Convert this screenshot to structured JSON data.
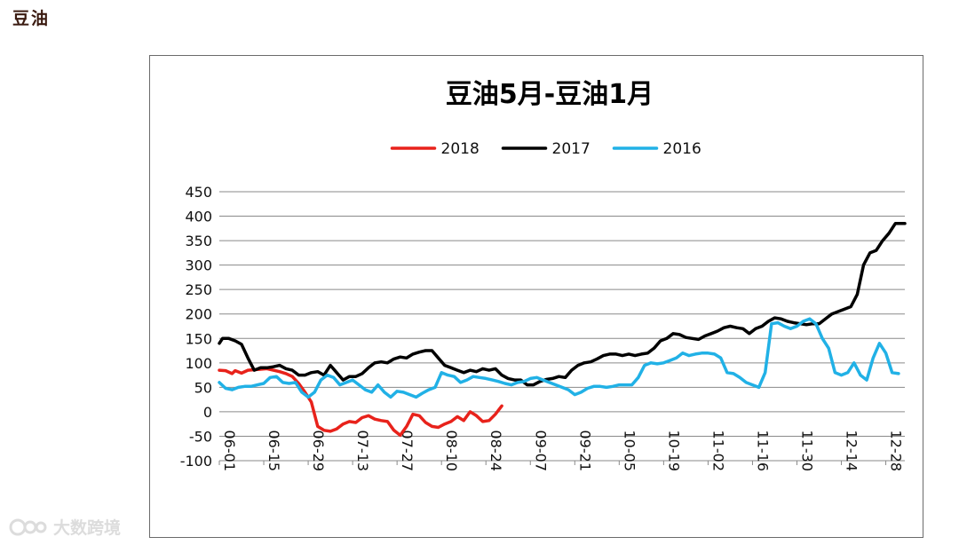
{
  "page": {
    "heading": "豆油",
    "watermark": "大数跨境"
  },
  "chart_data": {
    "type": "line",
    "title": "豆油5月-豆油1月",
    "xlabel": "",
    "ylabel": "",
    "ylim": [
      -100,
      450
    ],
    "yticks": [
      -100,
      -50,
      0,
      50,
      100,
      150,
      200,
      250,
      300,
      350,
      400,
      450
    ],
    "xrange": [
      "06-01",
      "01-03"
    ],
    "xticks": [
      "06-01",
      "06-15",
      "06-29",
      "07-13",
      "07-27",
      "08-10",
      "08-24",
      "09-07",
      "09-21",
      "10-05",
      "10-19",
      "11-02",
      "11-16",
      "11-30",
      "12-14",
      "12-28"
    ],
    "grid": true,
    "legend_position": "top-center",
    "series": [
      {
        "name": "2018",
        "color": "#e8221b",
        "points": [
          [
            "06-01",
            85
          ],
          [
            "06-03",
            84
          ],
          [
            "06-05",
            78
          ],
          [
            "06-06",
            84
          ],
          [
            "06-08",
            79
          ],
          [
            "06-10",
            85
          ],
          [
            "06-12",
            86
          ],
          [
            "06-14",
            87
          ],
          [
            "06-16",
            88
          ],
          [
            "06-18",
            85
          ],
          [
            "06-20",
            82
          ],
          [
            "06-22",
            78
          ],
          [
            "06-24",
            72
          ],
          [
            "06-26",
            58
          ],
          [
            "06-28",
            40
          ],
          [
            "06-30",
            20
          ],
          [
            "07-02",
            -30
          ],
          [
            "07-04",
            -38
          ],
          [
            "07-06",
            -40
          ],
          [
            "07-08",
            -35
          ],
          [
            "07-10",
            -25
          ],
          [
            "07-12",
            -20
          ],
          [
            "07-14",
            -22
          ],
          [
            "07-16",
            -12
          ],
          [
            "07-18",
            -8
          ],
          [
            "07-20",
            -15
          ],
          [
            "07-22",
            -18
          ],
          [
            "07-24",
            -20
          ],
          [
            "07-26",
            -38
          ],
          [
            "07-28",
            -48
          ],
          [
            "07-30",
            -30
          ],
          [
            "08-01",
            -5
          ],
          [
            "08-03",
            -8
          ],
          [
            "08-05",
            -22
          ],
          [
            "08-07",
            -30
          ],
          [
            "08-09",
            -32
          ],
          [
            "08-11",
            -25
          ],
          [
            "08-13",
            -20
          ],
          [
            "08-15",
            -10
          ],
          [
            "08-17",
            -18
          ],
          [
            "08-19",
            0
          ],
          [
            "08-21",
            -8
          ],
          [
            "08-23",
            -20
          ],
          [
            "08-25",
            -18
          ],
          [
            "08-27",
            -5
          ],
          [
            "08-29",
            12
          ]
        ]
      },
      {
        "name": "2017",
        "color": "#000000",
        "points": [
          [
            "06-01",
            140
          ],
          [
            "06-02",
            150
          ],
          [
            "06-04",
            150
          ],
          [
            "06-06",
            145
          ],
          [
            "06-08",
            138
          ],
          [
            "06-10",
            110
          ],
          [
            "06-12",
            85
          ],
          [
            "06-14",
            90
          ],
          [
            "06-16",
            90
          ],
          [
            "06-18",
            92
          ],
          [
            "06-20",
            95
          ],
          [
            "06-22",
            88
          ],
          [
            "06-24",
            85
          ],
          [
            "06-26",
            75
          ],
          [
            "06-28",
            75
          ],
          [
            "06-30",
            80
          ],
          [
            "07-02",
            82
          ],
          [
            "07-04",
            75
          ],
          [
            "07-06",
            95
          ],
          [
            "07-08",
            80
          ],
          [
            "07-10",
            65
          ],
          [
            "07-12",
            72
          ],
          [
            "07-14",
            72
          ],
          [
            "07-16",
            78
          ],
          [
            "07-18",
            90
          ],
          [
            "07-20",
            100
          ],
          [
            "07-22",
            102
          ],
          [
            "07-24",
            100
          ],
          [
            "07-26",
            108
          ],
          [
            "07-28",
            112
          ],
          [
            "07-30",
            110
          ],
          [
            "08-01",
            118
          ],
          [
            "08-03",
            122
          ],
          [
            "08-05",
            125
          ],
          [
            "08-07",
            125
          ],
          [
            "08-09",
            110
          ],
          [
            "08-11",
            95
          ],
          [
            "08-13",
            90
          ],
          [
            "08-15",
            85
          ],
          [
            "08-17",
            80
          ],
          [
            "08-19",
            85
          ],
          [
            "08-21",
            82
          ],
          [
            "08-23",
            88
          ],
          [
            "08-25",
            85
          ],
          [
            "08-27",
            88
          ],
          [
            "08-29",
            75
          ],
          [
            "08-31",
            68
          ],
          [
            "09-02",
            65
          ],
          [
            "09-04",
            65
          ],
          [
            "09-06",
            55
          ],
          [
            "09-08",
            55
          ],
          [
            "09-10",
            62
          ],
          [
            "09-12",
            66
          ],
          [
            "09-14",
            68
          ],
          [
            "09-16",
            72
          ],
          [
            "09-18",
            70
          ],
          [
            "09-20",
            85
          ],
          [
            "09-22",
            95
          ],
          [
            "09-24",
            100
          ],
          [
            "09-26",
            102
          ],
          [
            "09-28",
            108
          ],
          [
            "09-30",
            115
          ],
          [
            "10-02",
            118
          ],
          [
            "10-04",
            118
          ],
          [
            "10-06",
            115
          ],
          [
            "10-08",
            118
          ],
          [
            "10-10",
            115
          ],
          [
            "10-12",
            118
          ],
          [
            "10-14",
            120
          ],
          [
            "10-16",
            130
          ],
          [
            "10-18",
            145
          ],
          [
            "10-20",
            150
          ],
          [
            "10-22",
            160
          ],
          [
            "10-24",
            158
          ],
          [
            "10-26",
            152
          ],
          [
            "10-28",
            150
          ],
          [
            "10-30",
            148
          ],
          [
            "11-01",
            155
          ],
          [
            "11-03",
            160
          ],
          [
            "11-05",
            165
          ],
          [
            "11-07",
            172
          ],
          [
            "11-09",
            175
          ],
          [
            "11-11",
            172
          ],
          [
            "11-13",
            170
          ],
          [
            "11-15",
            160
          ],
          [
            "11-17",
            170
          ],
          [
            "11-19",
            175
          ],
          [
            "11-21",
            185
          ],
          [
            "11-23",
            192
          ],
          [
            "11-25",
            190
          ],
          [
            "11-27",
            185
          ],
          [
            "11-29",
            182
          ],
          [
            "12-01",
            180
          ],
          [
            "12-03",
            178
          ],
          [
            "12-05",
            180
          ],
          [
            "12-07",
            180
          ],
          [
            "12-09",
            190
          ],
          [
            "12-11",
            200
          ],
          [
            "12-13",
            205
          ],
          [
            "12-15",
            210
          ],
          [
            "12-17",
            215
          ],
          [
            "12-19",
            240
          ],
          [
            "12-21",
            300
          ],
          [
            "12-23",
            325
          ],
          [
            "12-25",
            330
          ],
          [
            "12-27",
            350
          ],
          [
            "12-29",
            365
          ],
          [
            "12-31",
            385
          ],
          [
            "01-03",
            385
          ]
        ]
      },
      {
        "name": "2016",
        "color": "#21b1e6",
        "points": [
          [
            "06-01",
            60
          ],
          [
            "06-03",
            48
          ],
          [
            "06-05",
            45
          ],
          [
            "06-07",
            50
          ],
          [
            "06-09",
            52
          ],
          [
            "06-11",
            52
          ],
          [
            "06-13",
            55
          ],
          [
            "06-15",
            58
          ],
          [
            "06-17",
            70
          ],
          [
            "06-19",
            72
          ],
          [
            "06-21",
            60
          ],
          [
            "06-23",
            58
          ],
          [
            "06-25",
            60
          ],
          [
            "06-27",
            40
          ],
          [
            "06-29",
            30
          ],
          [
            "07-01",
            40
          ],
          [
            "07-03",
            65
          ],
          [
            "07-05",
            75
          ],
          [
            "07-07",
            70
          ],
          [
            "07-09",
            55
          ],
          [
            "07-11",
            60
          ],
          [
            "07-13",
            65
          ],
          [
            "07-15",
            55
          ],
          [
            "07-17",
            45
          ],
          [
            "07-19",
            40
          ],
          [
            "07-21",
            55
          ],
          [
            "07-23",
            40
          ],
          [
            "07-25",
            30
          ],
          [
            "07-27",
            42
          ],
          [
            "07-29",
            40
          ],
          [
            "07-31",
            35
          ],
          [
            "08-02",
            30
          ],
          [
            "08-04",
            38
          ],
          [
            "08-06",
            45
          ],
          [
            "08-08",
            50
          ],
          [
            "08-10",
            80
          ],
          [
            "08-12",
            75
          ],
          [
            "08-14",
            72
          ],
          [
            "08-16",
            60
          ],
          [
            "08-18",
            65
          ],
          [
            "08-20",
            72
          ],
          [
            "08-22",
            70
          ],
          [
            "08-24",
            68
          ],
          [
            "08-26",
            65
          ],
          [
            "08-28",
            62
          ],
          [
            "08-30",
            58
          ],
          [
            "09-01",
            55
          ],
          [
            "09-03",
            60
          ],
          [
            "09-05",
            62
          ],
          [
            "09-07",
            68
          ],
          [
            "09-09",
            70
          ],
          [
            "09-11",
            65
          ],
          [
            "09-13",
            60
          ],
          [
            "09-15",
            55
          ],
          [
            "09-17",
            50
          ],
          [
            "09-19",
            45
          ],
          [
            "09-21",
            35
          ],
          [
            "09-23",
            40
          ],
          [
            "09-25",
            48
          ],
          [
            "09-27",
            52
          ],
          [
            "09-29",
            52
          ],
          [
            "10-01",
            50
          ],
          [
            "10-03",
            52
          ],
          [
            "10-05",
            55
          ],
          [
            "10-07",
            55
          ],
          [
            "10-09",
            55
          ],
          [
            "10-11",
            70
          ],
          [
            "10-13",
            95
          ],
          [
            "10-15",
            100
          ],
          [
            "10-17",
            98
          ],
          [
            "10-19",
            100
          ],
          [
            "10-21",
            105
          ],
          [
            "10-23",
            110
          ],
          [
            "10-25",
            120
          ],
          [
            "10-27",
            115
          ],
          [
            "10-29",
            118
          ],
          [
            "10-31",
            120
          ],
          [
            "11-02",
            120
          ],
          [
            "11-04",
            118
          ],
          [
            "11-06",
            110
          ],
          [
            "11-08",
            80
          ],
          [
            "11-10",
            78
          ],
          [
            "11-12",
            70
          ],
          [
            "11-14",
            60
          ],
          [
            "11-16",
            55
          ],
          [
            "11-18",
            50
          ],
          [
            "11-20",
            80
          ],
          [
            "11-22",
            180
          ],
          [
            "11-24",
            182
          ],
          [
            "11-26",
            175
          ],
          [
            "11-28",
            170
          ],
          [
            "11-30",
            175
          ],
          [
            "12-02",
            185
          ],
          [
            "12-04",
            190
          ],
          [
            "12-06",
            180
          ],
          [
            "12-08",
            150
          ],
          [
            "12-10",
            130
          ],
          [
            "12-12",
            80
          ],
          [
            "12-14",
            75
          ],
          [
            "12-16",
            80
          ],
          [
            "12-18",
            100
          ],
          [
            "12-20",
            75
          ],
          [
            "12-22",
            65
          ],
          [
            "12-24",
            110
          ],
          [
            "12-26",
            140
          ],
          [
            "12-28",
            120
          ],
          [
            "12-30",
            80
          ],
          [
            "01-01",
            78
          ]
        ]
      }
    ]
  }
}
